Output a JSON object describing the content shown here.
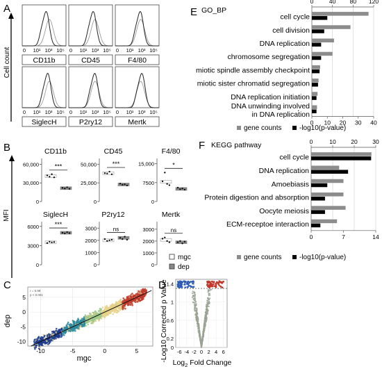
{
  "panel_letters": {
    "a": "A",
    "b": "B",
    "c": "C",
    "d": "D",
    "e": "E",
    "f": "F"
  },
  "panel_a": {
    "ylabel": "Cell count",
    "ticks": [
      "0",
      "10¹",
      "10³",
      "10⁵"
    ],
    "markers": [
      "CD11b",
      "CD45",
      "F4/80",
      "SiglecH",
      "P2ry12",
      "Mertk"
    ]
  },
  "panel_b": {
    "ylabel": "MFI",
    "legend": [
      {
        "label": "mgc",
        "color": "#ffffff"
      },
      {
        "label": "dep",
        "color": "#888888"
      }
    ]
  },
  "panel_c": {
    "xlabel": "mgc",
    "ylabel": "dep"
  },
  "panel_d": {
    "ylabel": "-Log10 Corrected p Value",
    "xlabel_pre": "Log",
    "xlabel_sub": "2",
    "xlabel_post": " Fold Change"
  },
  "panel_e": {
    "dot": "."
  },
  "panel_f": {},
  "chart_data": [
    {
      "id": "panelB",
      "type": "scatter",
      "subplots": [
        {
          "marker": "CD11b",
          "ticks": [
            {
              "v": 0,
              "label": "0"
            },
            {
              "v": 30000,
              "label": "30,000"
            },
            {
              "v": 60000,
              "label": "60,000"
            }
          ],
          "ylim": [
            0,
            65000
          ],
          "mgc_points": [
            42000,
            40000,
            44000,
            39000
          ],
          "dep_points": [
            22000,
            21000,
            23000,
            20500
          ],
          "mgc_mean": 41000,
          "dep_mean": 21500,
          "sig": "***"
        },
        {
          "marker": "CD45",
          "ticks": [
            {
              "v": 0,
              "label": "0"
            },
            {
              "v": 25000,
              "label": "25,000"
            },
            {
              "v": 50000,
              "label": "50,000"
            }
          ],
          "ylim": [
            0,
            54000
          ],
          "mgc_points": [
            38000,
            37500,
            40000,
            36500
          ],
          "dep_points": [
            24000,
            22500,
            23000,
            21500
          ],
          "mgc_mean": 38000,
          "dep_mean": 22800,
          "sig": "***"
        },
        {
          "marker": "F4/80",
          "ticks": [
            {
              "v": 0,
              "label": "0"
            },
            {
              "v": 7500,
              "label": "7500"
            },
            {
              "v": 15000,
              "label": "15,000"
            }
          ],
          "ylim": [
            0,
            16000
          ],
          "mgc_points": [
            8000,
            11500,
            7000,
            6500
          ],
          "dep_points": [
            5500,
            4900,
            5200,
            4700
          ],
          "mgc_mean": 7800,
          "dep_mean": 5000,
          "sig": "*"
        },
        {
          "marker": "SiglecH",
          "ticks": [
            {
              "v": 0,
              "label": "0"
            },
            {
              "v": 3000,
              "label": "3000"
            },
            {
              "v": 6000,
              "label": "6000"
            }
          ],
          "ylim": [
            0,
            6300
          ],
          "mgc_points": [
            3400,
            3600,
            3500,
            3550
          ],
          "dep_points": [
            5000,
            4900,
            5100,
            4950
          ],
          "mgc_mean": 3500,
          "dep_mean": 5000,
          "sig": "***"
        },
        {
          "marker": "P2ry12",
          "ticks": [
            {
              "v": 0,
              "label": "0"
            },
            {
              "v": 1000,
              "label": "1000"
            },
            {
              "v": 2000,
              "label": "2000"
            },
            {
              "v": 3000,
              "label": "3000"
            }
          ],
          "ylim": [
            0,
            3300
          ],
          "mgc_points": [
            2100,
            1950,
            2000,
            2050
          ],
          "dep_points": [
            2200,
            2100,
            2300,
            2050
          ],
          "mgc_mean": 2000,
          "dep_mean": 2200,
          "sig": "ns"
        },
        {
          "marker": "Mertk",
          "ticks": [
            {
              "v": 0,
              "label": "0"
            },
            {
              "v": 1000,
              "label": "1000"
            },
            {
              "v": 2000,
              "label": "2000"
            },
            {
              "v": 3000,
              "label": "3000"
            }
          ],
          "ylim": [
            0,
            3400
          ],
          "mgc_points": [
            2200,
            2300,
            2000,
            1900
          ],
          "dep_points": [
            1900,
            2000,
            1800,
            1950
          ],
          "mgc_mean": 2100,
          "dep_mean": 1900,
          "sig": "ns"
        }
      ]
    },
    {
      "id": "panelC",
      "type": "scatter",
      "xlabel": "mgc",
      "ylabel": "dep",
      "xticks": [
        -10,
        -5,
        0,
        5
      ],
      "yticks": [
        -10,
        -5,
        0,
        5
      ],
      "xlim": [
        -12,
        7.5
      ],
      "ylim": [
        -11.5,
        8.5
      ],
      "inset_text": [
        "r = 0.98",
        "p < 0.001"
      ]
    },
    {
      "id": "panelD",
      "type": "scatter",
      "xticks": [
        -6,
        -4,
        -2,
        0,
        2,
        4,
        6
      ],
      "yticks": [
        {
          "v": 0,
          "label": "0"
        },
        {
          "v": 0.2,
          "label": "0.2"
        },
        {
          "v": 0.6,
          "label": "0.6"
        },
        {
          "v": 1.0,
          "label": "1"
        },
        {
          "v": 1.4,
          "label": "1.4"
        }
      ],
      "xlim": [
        -7,
        7
      ],
      "ylim": [
        0,
        1.5
      ]
    },
    {
      "id": "panelE",
      "type": "bar",
      "title": "GO_BP",
      "categories": [
        "cell cycle",
        "cell division",
        "DNA replication",
        "chromosome segregation",
        "miotic spindle assembly checkpoint",
        "miotic sister chromatid segregation",
        "DNA replication initiation",
        "DNA unwinding involved in DNA replication"
      ],
      "series": [
        {
          "name": "gene counts",
          "color": "#8c8c8c",
          "axis": "top",
          "values": [
            110,
            75,
            43,
            40,
            16,
            13,
            11,
            10
          ]
        },
        {
          "name": "-log10(p-value)",
          "color": "#000000",
          "axis": "bottom",
          "values": [
            10,
            8,
            6,
            6,
            5,
            4,
            3,
            3
          ]
        }
      ],
      "top_axis": {
        "ticks": [
          0,
          40,
          80,
          120
        ],
        "lim": [
          0,
          120
        ]
      },
      "bottom_axis": {
        "ticks": [
          0,
          10,
          20,
          30,
          40
        ],
        "lim": [
          0,
          40
        ]
      }
    },
    {
      "id": "panelF",
      "type": "bar",
      "title": "KEGG pathway",
      "categories": [
        "cell cycle",
        "DNA replication",
        "Amoebiasis",
        "Protein digestion and absorption",
        "Oocyte meiosis",
        "ECM-receptoe interaction"
      ],
      "series": [
        {
          "name": "gene counts",
          "color": "#8c8c8c",
          "axis": "top",
          "values": [
            28,
            13,
            15,
            15,
            16,
            12
          ]
        },
        {
          "name": "-log10(p-value)",
          "color": "#000000",
          "axis": "bottom",
          "values": [
            13,
            8,
            3.5,
            3,
            3,
            2
          ]
        }
      ],
      "top_axis": {
        "ticks": [
          0,
          10,
          20,
          30
        ],
        "lim": [
          0,
          30
        ]
      },
      "bottom_axis": {
        "ticks": [
          0,
          7,
          14
        ],
        "lim": [
          0,
          14
        ]
      }
    }
  ]
}
